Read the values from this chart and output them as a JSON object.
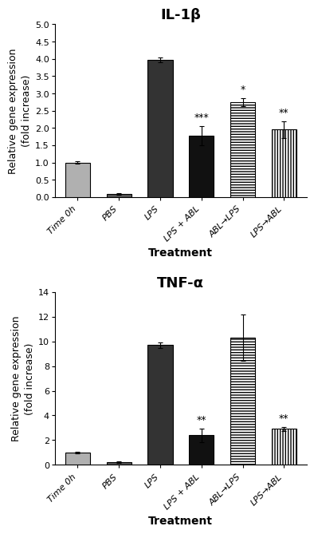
{
  "il1b": {
    "title": "IL-1β",
    "categories": [
      "Time 0h",
      "PBS",
      "LPS",
      "LPS + ABL",
      "ABL→LPS",
      "LPS→ABL"
    ],
    "values": [
      1.0,
      0.08,
      3.97,
      1.78,
      2.75,
      1.95
    ],
    "errors": [
      0.04,
      0.02,
      0.07,
      0.28,
      0.12,
      0.25
    ],
    "significance": [
      "",
      "",
      "",
      "***",
      "*",
      "**"
    ],
    "bar_styles": [
      "lgray",
      "dgray",
      "vdgray",
      "black",
      "hlines",
      "vlines"
    ],
    "ylim": [
      0,
      5.0
    ],
    "yticks": [
      0.0,
      0.5,
      1.0,
      1.5,
      2.0,
      2.5,
      3.0,
      3.5,
      4.0,
      4.5,
      5.0
    ],
    "ytick_labels": [
      "0.0",
      "0.5",
      "1.0",
      "1.5",
      "2.0",
      "2.5",
      "3.0",
      "3.5",
      "4.0",
      "4.5",
      "5.0"
    ]
  },
  "tnfa": {
    "title": "TNF-α",
    "categories": [
      "Time 0h",
      "PBS",
      "LPS",
      "LPS + ABL",
      "ABL→LPS",
      "LPS→ABL"
    ],
    "values": [
      1.0,
      0.22,
      9.7,
      2.4,
      10.3,
      2.9
    ],
    "errors": [
      0.06,
      0.05,
      0.22,
      0.55,
      1.9,
      0.18
    ],
    "significance": [
      "",
      "",
      "",
      "**",
      "",
      "**"
    ],
    "bar_styles": [
      "lgray",
      "dgray",
      "vdgray",
      "black",
      "hlines",
      "vlines"
    ],
    "ylim": [
      0,
      14
    ],
    "yticks": [
      0,
      2,
      4,
      6,
      8,
      10,
      12,
      14
    ],
    "ytick_labels": [
      "0",
      "2",
      "4",
      "6",
      "8",
      "10",
      "12",
      "14"
    ]
  },
  "ylabel": "Relative gene expression\n(fold increase)",
  "xlabel": "Treatment",
  "background_color": "#ffffff",
  "title_fontsize": 13,
  "axis_label_fontsize": 9,
  "xlabel_fontsize": 10,
  "tick_fontsize": 8,
  "sig_fontsize": 9,
  "bar_width": 0.6,
  "colors": {
    "lgray": "#b0b0b0",
    "dgray": "#555555",
    "vdgray": "#333333",
    "black": "#111111"
  }
}
